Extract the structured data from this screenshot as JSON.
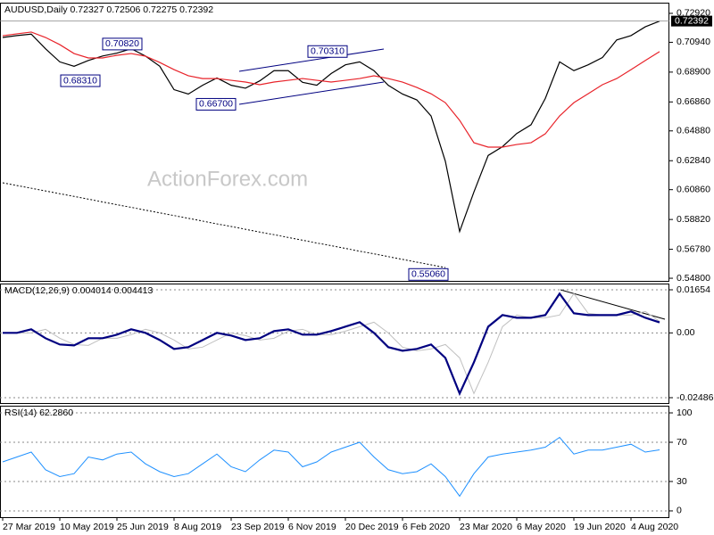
{
  "chart_data": [
    {
      "type": "line",
      "header": "AUDUSD,Daily  0.72327 0.72506 0.72275 0.72392",
      "watermark": "ActionForex.com",
      "ylim": [
        0.5462,
        0.7365
      ],
      "yticks": [
        {
          "value": 0.7292,
          "label": "0.72920"
        },
        {
          "value": 0.7094,
          "label": "0.70940"
        },
        {
          "value": 0.689,
          "label": "0.68900"
        },
        {
          "value": 0.6686,
          "label": "0.66860"
        },
        {
          "value": 0.6488,
          "label": "0.64880"
        },
        {
          "value": 0.6284,
          "label": "0.62840"
        },
        {
          "value": 0.6086,
          "label": "0.60860"
        },
        {
          "value": 0.5882,
          "label": "0.58820"
        },
        {
          "value": 0.5678,
          "label": "0.56780"
        },
        {
          "value": 0.548,
          "label": "0.54800"
        }
      ],
      "grid": false,
      "last_price": 0.72392,
      "annotations": [
        {
          "value": 0.6831,
          "label": "0.68310"
        },
        {
          "value": 0.7082,
          "label": "0.70820"
        },
        {
          "value": 0.667,
          "label": "0.66700"
        },
        {
          "value": 0.7031,
          "label": "0.70310"
        },
        {
          "value": 0.5506,
          "label": "0.55060"
        }
      ],
      "series": [
        {
          "color": "#000000",
          "width": 1.2,
          "style": "solid",
          "values": [
            0.7127,
            0.714,
            0.715,
            0.705,
            0.696,
            0.693,
            0.697,
            0.7,
            0.702,
            0.705,
            0.7,
            0.693,
            0.677,
            0.674,
            0.68,
            0.685,
            0.68,
            0.678,
            0.683,
            0.69,
            0.69,
            0.682,
            0.68,
            0.688,
            0.694,
            0.696,
            0.69,
            0.68,
            0.674,
            0.67,
            0.659,
            0.628,
            0.58,
            0.607,
            0.632,
            0.638,
            0.647,
            0.653,
            0.671,
            0.696,
            0.69,
            0.694,
            0.699,
            0.711,
            0.714,
            0.72,
            0.7239
          ]
        },
        {
          "color": "#e8232a",
          "width": 1.2,
          "style": "solid",
          "values": [
            0.7139,
            0.7152,
            0.7164,
            0.7127,
            0.7078,
            0.7017,
            0.6987,
            0.6987,
            0.7005,
            0.7017,
            0.6999,
            0.6956,
            0.6907,
            0.6865,
            0.6846,
            0.6846,
            0.6834,
            0.6822,
            0.6804,
            0.6822,
            0.6834,
            0.6846,
            0.6834,
            0.6822,
            0.6834,
            0.6846,
            0.6865,
            0.6846,
            0.6822,
            0.6785,
            0.6742,
            0.6681,
            0.656,
            0.6407,
            0.6377,
            0.6377,
            0.6395,
            0.6407,
            0.6468,
            0.659,
            0.6681,
            0.6742,
            0.6804,
            0.6846,
            0.6907,
            0.6969,
            0.703
          ]
        },
        {
          "color": "#000000",
          "width": 1,
          "style": "dotted",
          "values": [
            0.6133,
            0.6114,
            0.6096,
            0.6077,
            0.6058,
            0.604,
            0.6021,
            0.6002,
            0.5983,
            0.5965,
            0.5946,
            0.5927,
            0.5909,
            0.589,
            0.5871,
            0.5852,
            0.5834,
            0.5815,
            0.5796,
            0.5778,
            0.5759,
            0.574,
            0.5721,
            0.5703,
            0.5684,
            0.5665,
            0.5647,
            0.5628,
            0.5609,
            0.559,
            0.5572,
            0.5553,
            null,
            null,
            null,
            null,
            null,
            null,
            null,
            null,
            null,
            null,
            null,
            null,
            null,
            null,
            null
          ]
        }
      ]
    },
    {
      "type": "line",
      "header": "MACD(12,26,9) 0.004014 0.004413",
      "ylim": [
        -0.02691,
        0.01893
      ],
      "yticks": [
        0.01654,
        {
          "value": 0,
          "label": "0.00"
        },
        -0.02486
      ],
      "grid": true,
      "series": [
        {
          "color": "#c0c0c0",
          "width": 1,
          "style": "solid",
          "values": [
            0,
            0,
            0,
            0.00137,
            -0.00205,
            -0.00445,
            -0.00479,
            -0.00205,
            -0.00205,
            -0.00068,
            0.00137,
            0,
            -0.00274,
            -0.00616,
            -0.00547,
            -0.00274,
            0,
            -0.00103,
            -0.00274,
            -0.00205,
            0.00068,
            0.00137,
            -0.00068,
            -0.00068,
            0.00068,
            0.00239,
            0.0041,
            0,
            -0.00547,
            -0.00684,
            -0.00616,
            -0.00445,
            -0.00958,
            -0.02326,
            -0.01129,
            0.00239,
            0.00684,
            0.00581,
            0.00581,
            0.00684,
            0.01505,
            0.00752,
            0.00684,
            0.00684,
            0.00684,
            0.00821,
            0.004413
          ]
        },
        {
          "color": "#000080",
          "width": 2.2,
          "style": "solid",
          "values": [
            0,
            0,
            0.00137,
            -0.00205,
            -0.00445,
            -0.00479,
            -0.00205,
            -0.00205,
            -0.00068,
            0.00137,
            0,
            -0.00274,
            -0.00616,
            -0.00547,
            -0.00274,
            0,
            -0.00103,
            -0.00274,
            -0.00205,
            0.00068,
            0.00137,
            -0.00068,
            -0.00068,
            0.00068,
            0.00239,
            0.0041,
            0,
            -0.00547,
            -0.00684,
            -0.00616,
            -0.00445,
            -0.00958,
            -0.02326,
            -0.01129,
            0.00239,
            0.00684,
            0.00581,
            0.00581,
            0.00684,
            0.01505,
            0.00752,
            0.00684,
            0.00684,
            0.00684,
            0.00821,
            0.00581,
            0.004014
          ]
        }
      ]
    },
    {
      "type": "line",
      "header": "RSI(14) 62.2860",
      "ylim": [
        -6.4,
        107.3
      ],
      "yticks": [
        100,
        70,
        30,
        0
      ],
      "grid": true,
      "categories": [
        "27 Mar 2019",
        null,
        null,
        null,
        "10 May 2019",
        null,
        null,
        null,
        "25 Jun 2019",
        null,
        null,
        null,
        "8 Aug 2019",
        null,
        null,
        null,
        "23 Sep 2019",
        null,
        null,
        null,
        "6 Nov 2019",
        null,
        null,
        null,
        "20 Dec 2019",
        null,
        null,
        null,
        "6 Feb 2020",
        null,
        null,
        null,
        "23 Mar 2020",
        null,
        null,
        null,
        "6 May 2020",
        null,
        null,
        null,
        "19 Jun 2020",
        null,
        null,
        null,
        "4 Aug 2020",
        null,
        null
      ],
      "series": [
        {
          "color": "#1e90ff",
          "width": 1,
          "style": "solid",
          "values": [
            50,
            55,
            60,
            42,
            35,
            38,
            55,
            52,
            58,
            60,
            48,
            40,
            35,
            38,
            48,
            58,
            45,
            40,
            52,
            62,
            60,
            45,
            50,
            60,
            65,
            70,
            55,
            42,
            38,
            40,
            48,
            35,
            15,
            38,
            55,
            58,
            60,
            62,
            65,
            75,
            58,
            62,
            62,
            65,
            68,
            60,
            62.286
          ]
        }
      ]
    }
  ]
}
